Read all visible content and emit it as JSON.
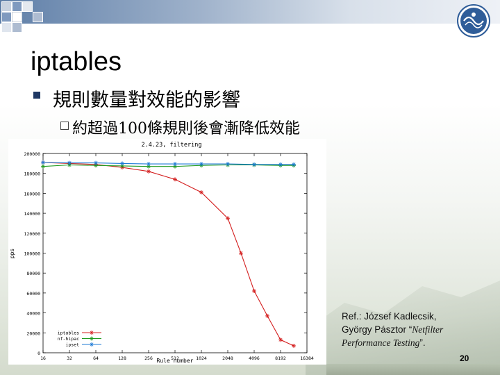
{
  "slide": {
    "title": "iptables",
    "bullet1": "規則數量對效能的影響",
    "bullet2": "約超過100條規則後會漸降低效能",
    "reference": {
      "line1": "Ref.: József Kadlecsik,",
      "line2_plain": "György Pásztor “",
      "line2_italic": "Netfilter",
      "line3_italic": "Performance Testing",
      "line3_plain": "”."
    },
    "page_number": "20",
    "icons": [
      "square-decoration-icon",
      "university-seal-icon"
    ],
    "colors": {
      "accent": "#5f7fa8",
      "bullet": "#1f3864"
    }
  },
  "chart_data": {
    "type": "line",
    "title": "2.4.23, filtering",
    "xlabel": "Rule number",
    "ylabel": "pps",
    "x_scale": "log2",
    "x_ticks": [
      "16",
      "32",
      "64",
      "128",
      "256",
      "512",
      "1024",
      "2048",
      "4096",
      "8192",
      "16384"
    ],
    "y_ticks": [
      "0",
      "20000",
      "40000",
      "60000",
      "80000",
      "100000",
      "120000",
      "140000",
      "160000",
      "180000",
      "200000"
    ],
    "xlim": [
      16,
      16384
    ],
    "ylim": [
      0,
      200000
    ],
    "grid": false,
    "legend_position": "bottom-left",
    "series": [
      {
        "name": "iptables",
        "color": "#d42020",
        "x": [
          16,
          32,
          64,
          128,
          256,
          512,
          1024,
          2048,
          2896,
          4096,
          5792,
          8192,
          11585
        ],
        "y": [
          191000,
          190000,
          189000,
          186000,
          182000,
          174000,
          161000,
          135000,
          100000,
          62000,
          37000,
          13000,
          7000
        ]
      },
      {
        "name": "nf-hipac",
        "color": "#1f9a1f",
        "x": [
          16,
          32,
          64,
          128,
          256,
          512,
          1024,
          2048,
          4096,
          8192,
          11585
        ],
        "y": [
          187000,
          188500,
          188000,
          187500,
          187000,
          187000,
          188000,
          188500,
          188500,
          188000,
          188000
        ]
      },
      {
        "name": "ipset",
        "color": "#1d7ad6",
        "x": [
          16,
          32,
          64,
          128,
          256,
          512,
          1024,
          2048,
          4096,
          8192,
          11585
        ],
        "y": [
          191000,
          190500,
          190500,
          190000,
          189500,
          189500,
          189500,
          189500,
          189000,
          189000,
          189000
        ]
      }
    ]
  }
}
